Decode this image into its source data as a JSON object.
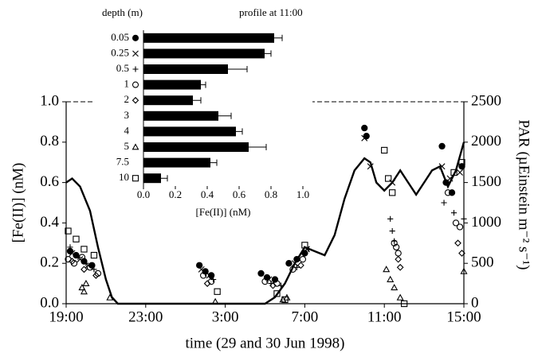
{
  "chart_data": [
    {
      "type": "scatter",
      "xlabel": "time (29 and 30 Jun 1998)",
      "ylabel": "[Fe(II)] (nM)",
      "y2label": "PAR (µEinstein m⁻² s⁻¹)",
      "xlim": [
        0,
        20
      ],
      "xticks": [
        {
          "value": 0,
          "label": "19:00"
        },
        {
          "value": 4,
          "label": "23:00"
        },
        {
          "value": 8,
          "label": "3:00"
        },
        {
          "value": 12,
          "label": "7:00"
        },
        {
          "value": 16,
          "label": "11:00"
        },
        {
          "value": 20,
          "label": "15:00"
        }
      ],
      "ylim": [
        0,
        1
      ],
      "yticks": [
        {
          "value": 0,
          "label": "0.0"
        },
        {
          "value": 0.2,
          "label": "0.2"
        },
        {
          "value": 0.4,
          "label": "0.4"
        },
        {
          "value": 0.6,
          "label": "0.6"
        },
        {
          "value": 0.8,
          "label": "0.8"
        },
        {
          "value": 1,
          "label": "1.0"
        }
      ],
      "y2lim": [
        0,
        2500
      ],
      "y2ticks": [
        0,
        500,
        1000,
        1500,
        2000,
        2500
      ],
      "series": [
        {
          "marker": "filled-circle",
          "color": "#000000",
          "x": [
            0.2,
            0.5,
            0.9,
            1.3,
            6.7,
            7.0,
            7.3,
            9.8,
            10.1,
            10.5,
            11.2,
            11.6,
            12.0,
            15.0,
            15.1,
            18.9,
            19.1,
            19.4,
            19.9
          ],
          "values": [
            0.26,
            0.24,
            0.21,
            0.19,
            0.19,
            0.16,
            0.14,
            0.15,
            0.13,
            0.12,
            0.2,
            0.22,
            0.25,
            0.87,
            0.83,
            0.78,
            0.6,
            0.55,
            0.68
          ]
        },
        {
          "marker": "cross",
          "color": "#000000",
          "x": [
            0.3,
            0.7,
            1.1,
            6.8,
            7.2,
            10.2,
            11.5,
            12.1,
            15.0,
            15.3,
            16.4,
            18.9,
            19.3,
            19.8
          ],
          "values": [
            0.25,
            0.22,
            0.19,
            0.17,
            0.14,
            0.12,
            0.2,
            0.27,
            0.82,
            0.68,
            0.6,
            0.68,
            0.62,
            0.65
          ]
        },
        {
          "marker": "plus",
          "color": "#000000",
          "x": [
            0.2,
            0.6,
            1.0,
            1.4,
            7.0,
            7.4,
            10.3,
            10.8,
            11.6,
            12.2,
            16.3,
            16.4,
            16.5,
            19.0,
            19.5,
            20.0
          ],
          "values": [
            0.28,
            0.23,
            0.2,
            0.17,
            0.15,
            0.12,
            0.1,
            0.09,
            0.18,
            0.27,
            0.42,
            0.36,
            0.31,
            0.5,
            0.45,
            0.42
          ]
        },
        {
          "marker": "circle",
          "color": "#000000",
          "x": [
            0.1,
            0.4,
            0.8,
            1.2,
            1.6,
            6.9,
            7.3,
            10.0,
            10.6,
            11.4,
            11.9,
            16.5,
            16.6,
            16.7,
            19.2,
            19.6,
            19.8
          ],
          "values": [
            0.22,
            0.2,
            0.23,
            0.18,
            0.15,
            0.14,
            0.11,
            0.11,
            0.1,
            0.17,
            0.22,
            0.3,
            0.28,
            0.25,
            0.55,
            0.4,
            0.38
          ]
        },
        {
          "marker": "diamond",
          "color": "#000000",
          "x": [
            0.3,
            0.9,
            1.5,
            7.1,
            10.4,
            11.8,
            16.7,
            16.8,
            19.7,
            19.9
          ],
          "values": [
            0.21,
            0.17,
            0.14,
            0.1,
            0.09,
            0.19,
            0.22,
            0.18,
            0.3,
            0.25
          ]
        },
        {
          "marker": "triangle",
          "color": "#000000",
          "x": [
            0.8,
            0.9,
            1.0,
            2.2,
            7.5,
            10.9,
            11.1,
            16.1,
            16.3,
            16.5,
            16.8,
            20.0
          ],
          "values": [
            0.08,
            0.06,
            0.1,
            0.03,
            0.01,
            0.02,
            0.03,
            0.17,
            0.12,
            0.08,
            0.03,
            0.16
          ]
        },
        {
          "marker": "square",
          "color": "#000000",
          "x": [
            0.1,
            0.5,
            0.9,
            1.4,
            7.6,
            10.6,
            11.0,
            12.0,
            16.0,
            16.2,
            16.4,
            17.0,
            19.5,
            19.9
          ],
          "values": [
            0.36,
            0.32,
            0.27,
            0.24,
            0.06,
            0.05,
            0.02,
            0.29,
            0.76,
            0.62,
            0.55,
            0.0,
            0.65,
            0.7
          ]
        },
        {
          "type": "line",
          "axis": "y2",
          "color": "#000000",
          "x": [
            0,
            0.3,
            0.7,
            1.2,
            1.6,
            2.0,
            2.3,
            2.6,
            10.0,
            10.5,
            11.0,
            11.5,
            12.0,
            12.5,
            13.0,
            13.5,
            14.0,
            14.5,
            15.0,
            15.3,
            15.6,
            16.0,
            16.4,
            16.8,
            17.2,
            17.6,
            18.0,
            18.4,
            18.8,
            19.2,
            19.6,
            20.0
          ],
          "values": [
            1500,
            1550,
            1450,
            1150,
            700,
            300,
            80,
            0,
            0,
            80,
            250,
            500,
            700,
            650,
            600,
            850,
            1300,
            1650,
            1800,
            1750,
            1500,
            1400,
            1500,
            1650,
            1500,
            1350,
            1500,
            1650,
            1700,
            1450,
            1650,
            2000
          ]
        }
      ]
    },
    {
      "type": "bar",
      "orientation": "horizontal",
      "title": "profile at 11:00",
      "category_label": "depth (m)",
      "xlabel": "[Fe(II)] (nM)",
      "categories": [
        "0.05",
        "0.25",
        "0.5",
        "1",
        "2",
        "3",
        "4",
        "5",
        "7.5",
        "10"
      ],
      "markers": [
        "filled-circle",
        "cross",
        "plus",
        "circle",
        "diamond",
        null,
        null,
        "triangle",
        null,
        "square"
      ],
      "values": [
        0.82,
        0.76,
        0.53,
        0.36,
        0.31,
        0.47,
        0.58,
        0.66,
        0.42,
        0.11
      ],
      "errors": [
        0.05,
        0.04,
        0.12,
        0.03,
        0.05,
        0.08,
        0.04,
        0.11,
        0.04,
        0.04
      ],
      "color": "#000000",
      "xlim": [
        0,
        1
      ],
      "xticks": [
        {
          "value": 0,
          "label": "0.0"
        },
        {
          "value": 0.2,
          "label": "0.2"
        },
        {
          "value": 0.4,
          "label": "0.4"
        },
        {
          "value": 0.6,
          "label": "0.6"
        },
        {
          "value": 0.8,
          "label": "0.8"
        },
        {
          "value": 1,
          "label": "1.0"
        }
      ]
    }
  ]
}
